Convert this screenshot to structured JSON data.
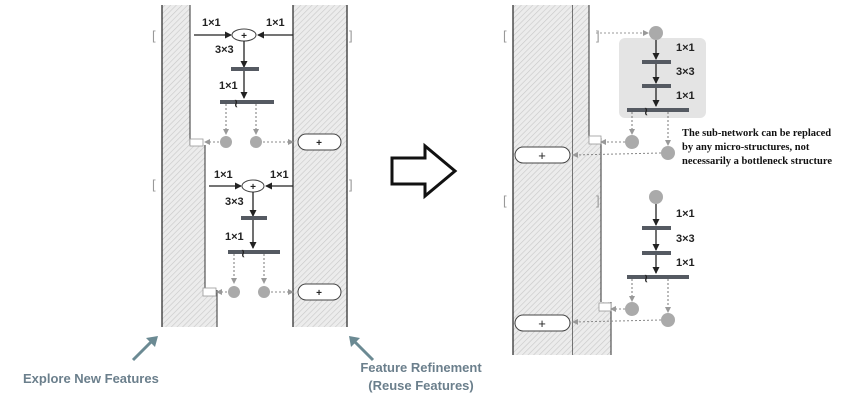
{
  "labels": {
    "conv1x1": "1×1",
    "conv3x3": "3×3",
    "plus": "+",
    "split": "≀",
    "bracket_left": "[",
    "bracket_right": "]"
  },
  "captions": {
    "explore": "Explore New Features",
    "refine_line1": "Feature Refinement",
    "refine_line2": "(Reuse Features)"
  },
  "note": {
    "line1": "The sub-network can be replaced",
    "line2": "by any micro-structures, not",
    "line3": "necessarily a bottleneck structure"
  },
  "colors": {
    "bar": "#555a62",
    "node": "#aaaaaa",
    "hatch": "#d0d0d0",
    "caption": "#6b7f8c",
    "highlight": "#e4e4e4",
    "arrow": "#ffffff"
  },
  "icons": {
    "transition": "right-arrow-icon",
    "pointer": "diagonal-arrow-icon"
  }
}
